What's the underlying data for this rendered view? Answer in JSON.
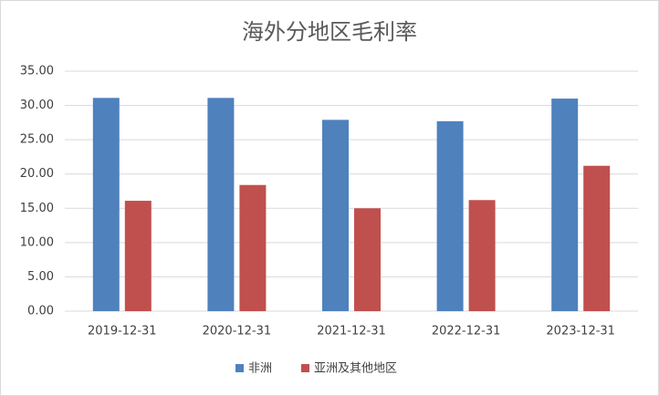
{
  "chart_data": {
    "type": "bar",
    "title": "海外分地区毛利率",
    "categories": [
      "2019-12-31",
      "2020-12-31",
      "2021-12-31",
      "2022-12-31",
      "2023-12-31"
    ],
    "series": [
      {
        "name": "非洲",
        "color": "#4f81bd",
        "values": [
          31.1,
          31.1,
          27.9,
          27.7,
          31.0
        ]
      },
      {
        "name": "亚洲及其他地区",
        "color": "#c0504d",
        "values": [
          16.1,
          18.4,
          15.0,
          16.2,
          21.2
        ]
      }
    ],
    "ylim": [
      0,
      35
    ],
    "yticks": [
      {
        "value": 0,
        "label": "0.00"
      },
      {
        "value": 5,
        "label": "5.00"
      },
      {
        "value": 10,
        "label": "10.00"
      },
      {
        "value": 15,
        "label": "15.00"
      },
      {
        "value": 20,
        "label": "20.00"
      },
      {
        "value": 25,
        "label": "25.00"
      },
      {
        "value": 30,
        "label": "30.00"
      },
      {
        "value": 35,
        "label": "35.00"
      }
    ],
    "grid": true,
    "legend": "bottom"
  }
}
